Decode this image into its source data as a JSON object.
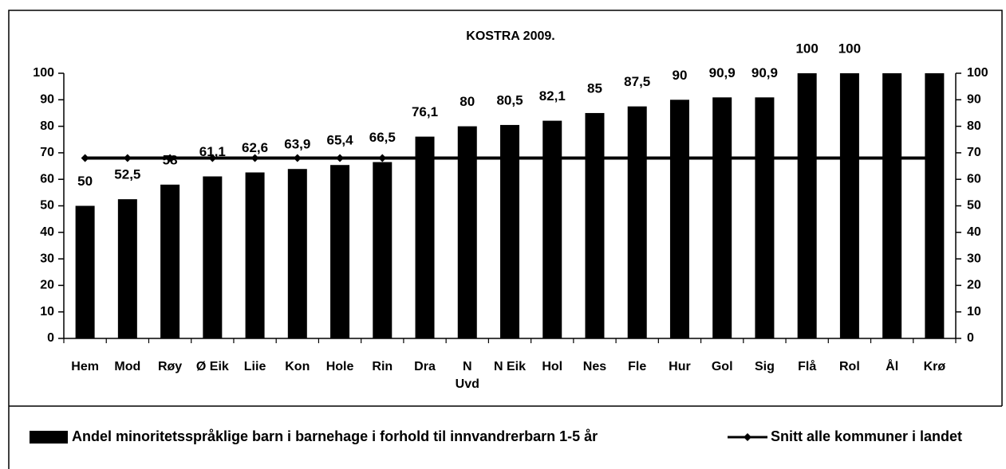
{
  "chart_data": {
    "type": "bar",
    "title": "KOSTRA 2009.",
    "categories": [
      "Hem",
      "Mod",
      "Røy",
      "Ø Eik",
      "Liie",
      "Kon",
      "Hole",
      "Rin",
      "Dra",
      "N\nUvd",
      "N Eik",
      "Hol",
      "Nes",
      "Fle",
      "Hur",
      "Gol",
      "Sig",
      "Flå",
      "Rol",
      "Ål",
      "Krø"
    ],
    "series": [
      {
        "name": "Andel minoritetsspråklige barn i barnehage i forhold til innvandrerbarn 1-5 år",
        "type": "bar",
        "color": "#000000",
        "values": [
          50,
          52.5,
          58,
          61.1,
          62.6,
          63.9,
          65.4,
          66.5,
          76.1,
          80,
          80.5,
          82.1,
          85,
          87.5,
          90,
          90.9,
          90.9,
          100,
          100,
          100,
          100
        ],
        "value_labels": [
          "50",
          "52,5",
          "58",
          "61,1",
          "62,6",
          "63,9",
          "65,4",
          "66,5",
          "76,1",
          "80",
          "80,5",
          "82,1",
          "85",
          "87,5",
          "90",
          "90,9",
          "90,9",
          "100",
          "100",
          null,
          null
        ]
      },
      {
        "name": "Snitt alle kommuner i landet",
        "type": "line",
        "color": "#000000",
        "values": [
          68,
          68,
          68,
          68,
          68,
          68,
          68,
          68,
          68,
          68,
          68,
          68,
          68,
          68,
          68,
          68,
          68,
          68,
          68,
          68,
          68
        ]
      }
    ],
    "ylim": [
      0,
      100
    ],
    "yticks": [
      0,
      10,
      20,
      30,
      40,
      50,
      60,
      70,
      80,
      90,
      100
    ],
    "y2lim": [
      0,
      100
    ],
    "y2ticks": [
      0,
      10,
      20,
      30,
      40,
      50,
      60,
      70,
      80,
      90,
      100
    ],
    "grid": false,
    "legend": "bottom"
  }
}
